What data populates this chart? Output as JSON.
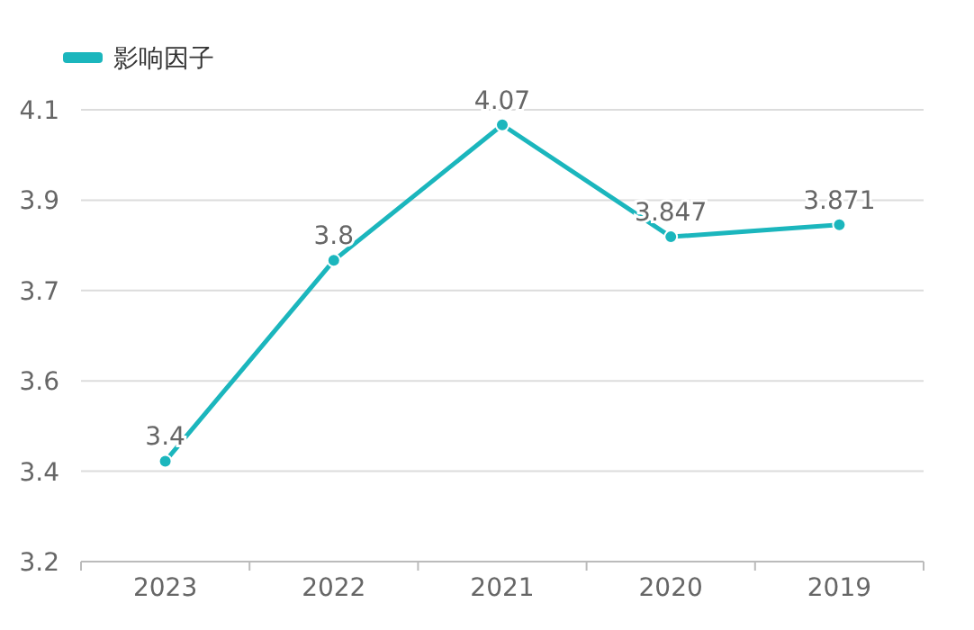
{
  "chart_data": {
    "type": "line",
    "categories": [
      "2023",
      "2022",
      "2021",
      "2020",
      "2019"
    ],
    "series": [
      {
        "name": "影响因子",
        "color": "#1bb6bd",
        "values": [
          3.4,
          3.8,
          4.07,
          3.847,
          3.871
        ]
      }
    ],
    "ylim": [
      3.2,
      4.1
    ],
    "yticks": [
      {
        "value": 3.2,
        "label": "3.2"
      },
      {
        "value": 3.38,
        "label": "3.4"
      },
      {
        "value": 3.56,
        "label": "3.6"
      },
      {
        "value": 3.74,
        "label": "3.7"
      },
      {
        "value": 3.92,
        "label": "3.9"
      },
      {
        "value": 4.1,
        "label": "4.1"
      }
    ],
    "grid": "y",
    "legend": "top left",
    "marker": "circle",
    "data_labels": true
  }
}
